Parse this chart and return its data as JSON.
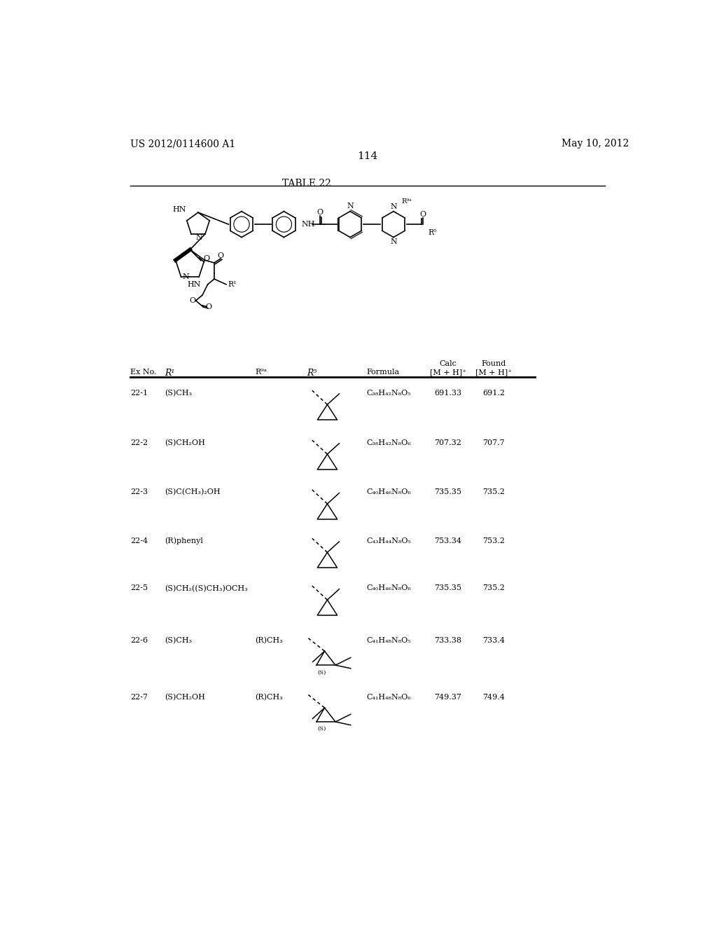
{
  "page_left": "US 2012/0114600 A1",
  "page_right": "May 10, 2012",
  "page_number": "114",
  "table_title": "TABLE 22",
  "background_color": "#ffffff",
  "text_color": "#000000",
  "rows": [
    {
      "ex": "22-1",
      "r1": "(S)CH₃",
      "r9a": "",
      "r5": "simple",
      "formula": "C₃₈H₄₂N₈O₅",
      "calc": "691.33",
      "found": "691.2"
    },
    {
      "ex": "22-2",
      "r1": "(S)CH₂OH",
      "r9a": "",
      "r5": "simple",
      "formula": "C₃₈H₄₂N₈O₆",
      "calc": "707.32",
      "found": "707.7"
    },
    {
      "ex": "22-3",
      "r1": "(S)C(CH₃)₂OH",
      "r9a": "",
      "r5": "simple",
      "formula": "C₄₀H₄₆N₈O₆",
      "calc": "735.35",
      "found": "735.2"
    },
    {
      "ex": "22-4",
      "r1": "(R)phenyl",
      "r9a": "",
      "r5": "simple",
      "formula": "C₄₃H₄₄N₈O₅",
      "calc": "753.34",
      "found": "753.2"
    },
    {
      "ex": "22-5",
      "r1": "(S)CH₂((S)CH₃)OCH₃",
      "r9a": "",
      "r5": "simple",
      "formula": "C₄₀H₄₆N₈O₆",
      "calc": "735.35",
      "found": "735.2"
    },
    {
      "ex": "22-6",
      "r1": "(S)CH₃",
      "r9a": "(R)CH₃",
      "r5": "gem_dimethyl",
      "formula": "C₄₁H₄₈N₈O₅",
      "calc": "733.38",
      "found": "733.4"
    },
    {
      "ex": "22-7",
      "r1": "(S)CH₂OH",
      "r9a": "(R)CH₃",
      "r5": "gem_dimethyl",
      "formula": "C₄₁H₄₈N₈O₆",
      "calc": "749.37",
      "found": "749.4"
    }
  ]
}
